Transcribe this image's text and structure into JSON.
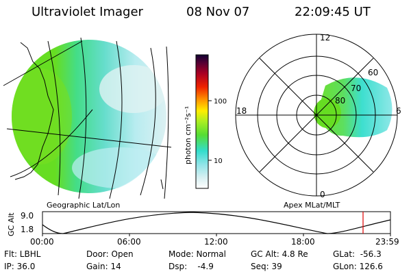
{
  "header": {
    "instrument": "Ultraviolet Imager",
    "date": "08 Nov 07",
    "time": "22:09:45 UT"
  },
  "colorbar": {
    "unit_label": "photon cm⁻²s⁻¹",
    "ticks": [
      "100",
      "10"
    ],
    "scale": "log"
  },
  "left_panel": {
    "caption": "Geographic Lat/Lon"
  },
  "right_panel": {
    "caption": "Apex MLat/MLT",
    "mlt_labels": {
      "top": "12",
      "left": "18",
      "right": "6",
      "bottom": "0"
    },
    "lat_labels": [
      "60",
      "70",
      "80"
    ]
  },
  "altitude_plot": {
    "ylabel": "GC Alt",
    "y_ticks": [
      "9.0",
      "1.8"
    ],
    "x_ticks": [
      "00:00",
      "06:00",
      "12:00",
      "18:00",
      "23:59"
    ],
    "current_time_marker": "22:09",
    "marker_color": "#e00000"
  },
  "status": {
    "flt": "Flt: LBHL",
    "ip": "IP: 36.0",
    "door": "Door: Open",
    "gain": "Gain: 14",
    "mode": "Mode: Normal",
    "dsp": "Dsp:    -4.9",
    "gc_alt": "GC Alt: 4.8 Re",
    "seq": "Seq: 39",
    "glat": "GLat:  -56.3",
    "glon": "GLon: 126.6"
  },
  "colors": {
    "green": "#66dd22",
    "cyan": "#33ddcc",
    "pale_cyan": "#aeeaf0",
    "light": "#d8f0f2",
    "red": "#e00000"
  }
}
